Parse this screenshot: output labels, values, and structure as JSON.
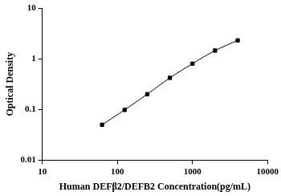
{
  "chart_data": {
    "type": "line",
    "x_label": "Human DEFβ2/DEFB2 Concentration(pg/mL)",
    "y_label": "Optical Density",
    "x": [
      62.5,
      125,
      250,
      500,
      1000,
      2000,
      4000
    ],
    "values": [
      0.05,
      0.098,
      0.2,
      0.42,
      0.8,
      1.45,
      2.3
    ],
    "color": "#000000",
    "marker": "square",
    "line_style": "solid",
    "log": true,
    "xlim": [
      10,
      10000
    ],
    "xticks": [
      10,
      100,
      1000,
      10000
    ],
    "ylim": [
      0.01,
      10
    ],
    "yticks": [
      0.01,
      0.1,
      1,
      10
    ],
    "grid": false
  }
}
